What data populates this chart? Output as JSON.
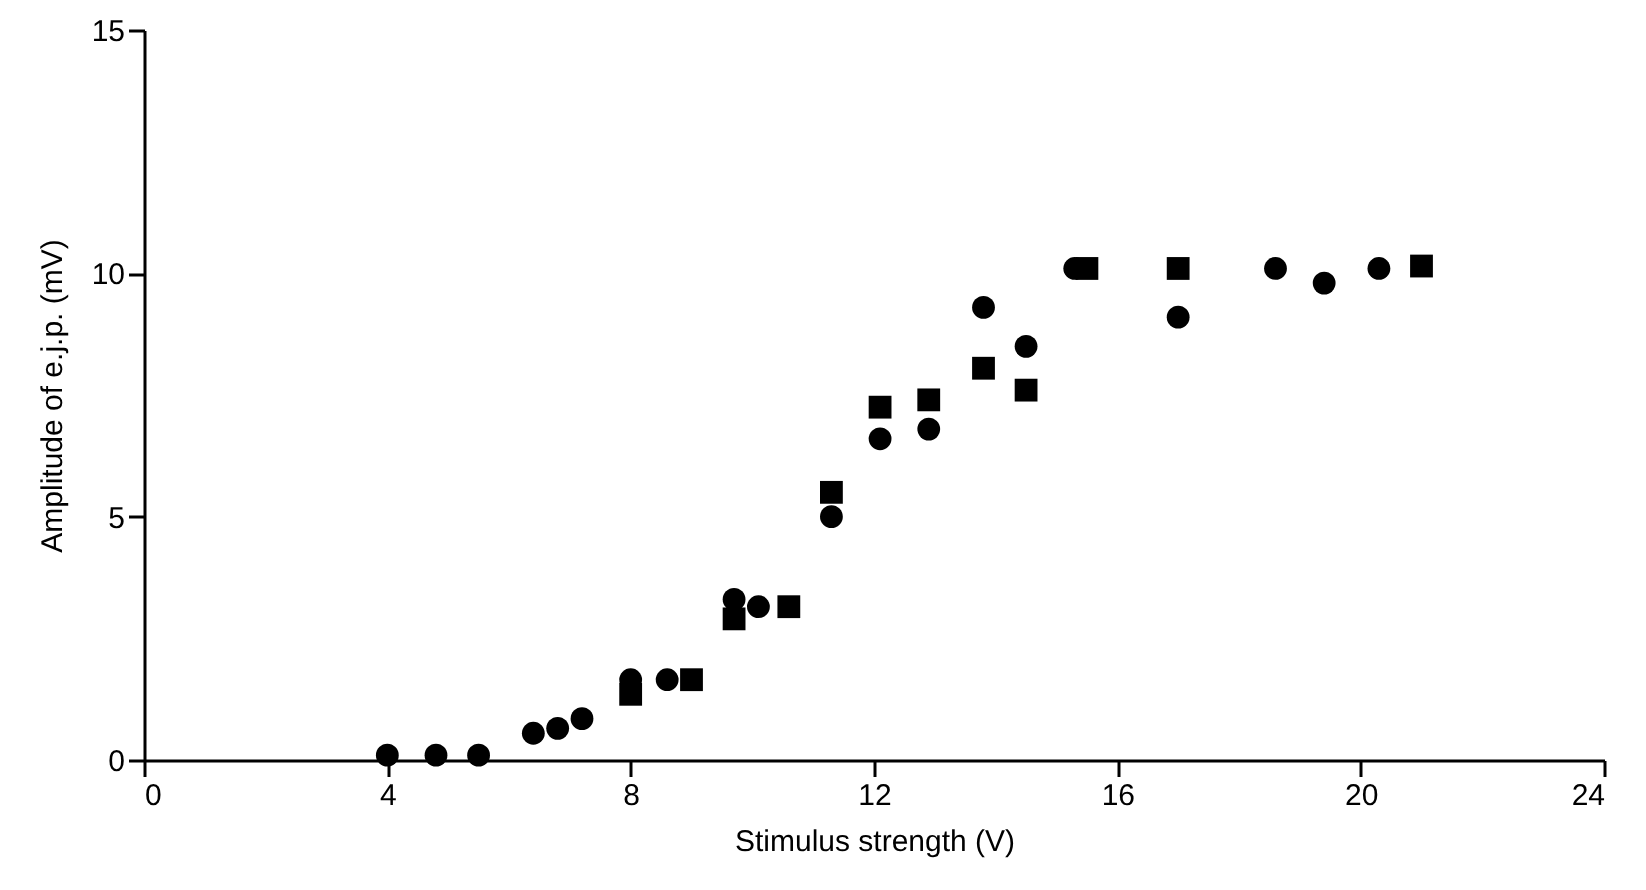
{
  "chart_data": {
    "type": "scatter",
    "xlabel": "Stimulus strength (V)",
    "ylabel": "Amplitude of e.j.p. (mV)",
    "xlim": [
      0,
      24
    ],
    "xticks": [
      0,
      4,
      8,
      12,
      16,
      20,
      24
    ],
    "ylim": [
      0,
      15
    ],
    "yticks": [
      0,
      5,
      10,
      15
    ],
    "grid": false,
    "series": [
      {
        "color": "#000000",
        "marker": "circle",
        "x": [
          4.0,
          4.8,
          5.5,
          6.4,
          6.8,
          7.2,
          8.0,
          8.6,
          9.7,
          10.1,
          11.3,
          12.1,
          12.9,
          13.8,
          14.5,
          15.3,
          17.0,
          18.6,
          19.4,
          20.3
        ],
        "values": [
          0.1,
          0.1,
          0.1,
          0.55,
          0.65,
          0.85,
          1.65,
          1.65,
          3.3,
          3.15,
          5.0,
          6.6,
          6.8,
          9.3,
          8.5,
          10.1,
          9.1,
          10.1,
          9.8,
          10.1
        ]
      },
      {
        "color": "#000000",
        "marker": "square",
        "x": [
          8.0,
          9.0,
          9.7,
          10.6,
          11.3,
          12.1,
          12.9,
          13.8,
          14.5,
          15.5,
          17.0,
          21.0
        ],
        "values": [
          1.35,
          1.65,
          2.9,
          3.15,
          5.5,
          7.25,
          7.4,
          8.05,
          7.6,
          10.1,
          10.1,
          10.15
        ]
      }
    ]
  }
}
